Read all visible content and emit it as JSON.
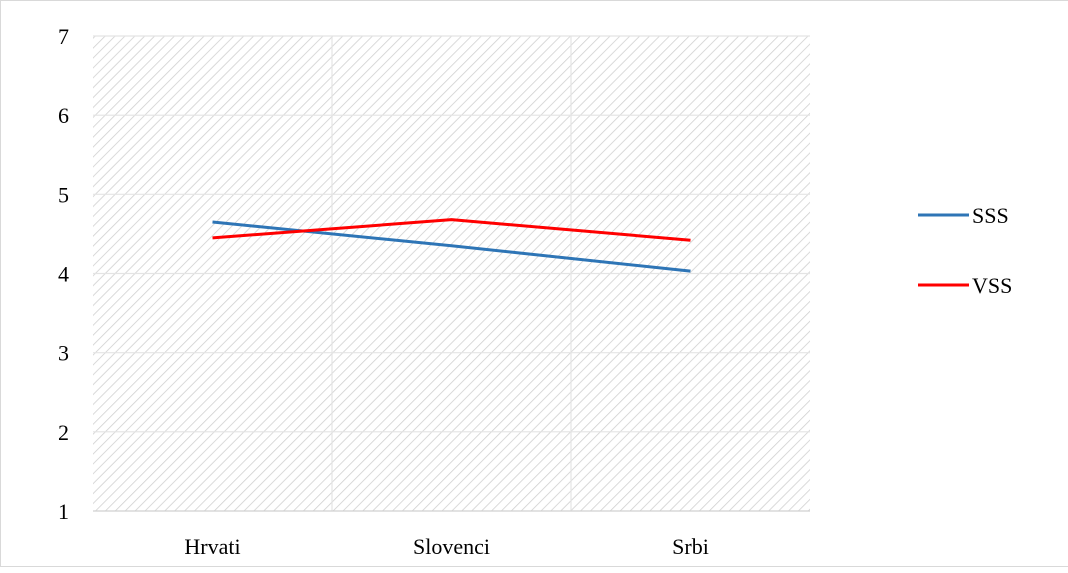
{
  "chart_data": {
    "type": "line",
    "categories": [
      "Hrvati",
      "Slovenci",
      "Srbi"
    ],
    "series": [
      {
        "name": "SSS",
        "color": "#2e75b6",
        "values": [
          4.65,
          4.35,
          4.03
        ]
      },
      {
        "name": "VSS",
        "color": "#ff0000",
        "values": [
          4.45,
          4.68,
          4.42
        ]
      }
    ],
    "yticks": [
      1,
      2,
      3,
      4,
      5,
      6,
      7
    ],
    "ylim": [
      1,
      7
    ],
    "title": "",
    "xlabel": "",
    "ylabel": "",
    "grid": true,
    "plot_fill": "diagonal-hatch",
    "legend_position": "right"
  }
}
